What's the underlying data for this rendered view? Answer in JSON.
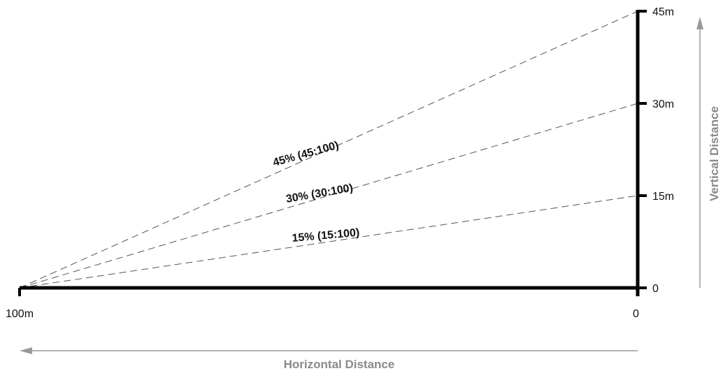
{
  "horizontal_axis": {
    "title": "Horizontal Distance",
    "left_label": "100m",
    "right_label": "0"
  },
  "vertical_axis": {
    "title": "Vertical Distance",
    "ticks": [
      "45m",
      "30m",
      "15m",
      "0"
    ]
  },
  "slopes": [
    {
      "label": "45% (45:100)",
      "rise": 45,
      "run": 100
    },
    {
      "label": "30% (30:100)",
      "rise": 30,
      "run": 100
    },
    {
      "label": "15% (15:100)",
      "rise": 15,
      "run": 100
    }
  ],
  "colors": {
    "axis": "#000000",
    "dashed_line": "#555555",
    "arrow": "#999999",
    "axis_title": "#8a8a8a"
  }
}
